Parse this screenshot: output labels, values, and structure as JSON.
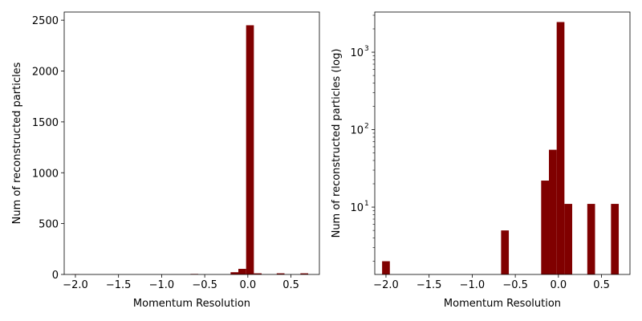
{
  "bar_color": "#800000",
  "chart_data": [
    {
      "type": "bar",
      "title": "",
      "xlabel": "Momentum Resolution",
      "ylabel": "Num of reconstructed particles",
      "yscale": "linear",
      "xlim": [
        -2.13,
        0.83
      ],
      "ylim": [
        0,
        2580
      ],
      "xticks": [
        -2.0,
        -1.5,
        -1.0,
        -0.5,
        0.0,
        0.5
      ],
      "xtick_labels": [
        "−2.0",
        "−1.5",
        "−1.0",
        "−0.5",
        "0.0",
        "0.5"
      ],
      "yticks": [
        0,
        500,
        1000,
        1500,
        2000,
        2500
      ],
      "ytick_labels": [
        "0",
        "500",
        "1000",
        "1500",
        "2000",
        "2500"
      ],
      "grid": false,
      "bin_width": 0.09,
      "bins": [
        {
          "x": -2.0,
          "value": 2
        },
        {
          "x": -0.62,
          "value": 5
        },
        {
          "x": -0.155,
          "value": 22
        },
        {
          "x": -0.065,
          "value": 55
        },
        {
          "x": 0.025,
          "value": 2450
        },
        {
          "x": 0.115,
          "value": 11
        },
        {
          "x": 0.38,
          "value": 11
        },
        {
          "x": 0.655,
          "value": 11
        }
      ]
    },
    {
      "type": "bar",
      "title": "",
      "xlabel": "Momentum Resolution",
      "ylabel": "Num of reconstructed particles (log)",
      "yscale": "log",
      "xlim": [
        -2.13,
        0.83
      ],
      "ylim": [
        1.35,
        3300
      ],
      "xticks": [
        -2.0,
        -1.5,
        -1.0,
        -0.5,
        0.0,
        0.5
      ],
      "xtick_labels": [
        "−2.0",
        "−1.5",
        "−1.0",
        "−0.5",
        "0.0",
        "0.5"
      ],
      "yticks": [
        10,
        100,
        1000
      ],
      "ytick_labels": [
        [
          "10",
          "1"
        ],
        [
          "10",
          "2"
        ],
        [
          "10",
          "3"
        ]
      ],
      "grid": false,
      "bin_width": 0.09,
      "bins": [
        {
          "x": -2.0,
          "value": 2
        },
        {
          "x": -0.62,
          "value": 5
        },
        {
          "x": -0.155,
          "value": 22
        },
        {
          "x": -0.065,
          "value": 55
        },
        {
          "x": 0.025,
          "value": 2450
        },
        {
          "x": 0.115,
          "value": 11
        },
        {
          "x": 0.38,
          "value": 11
        },
        {
          "x": 0.655,
          "value": 11
        }
      ]
    }
  ]
}
